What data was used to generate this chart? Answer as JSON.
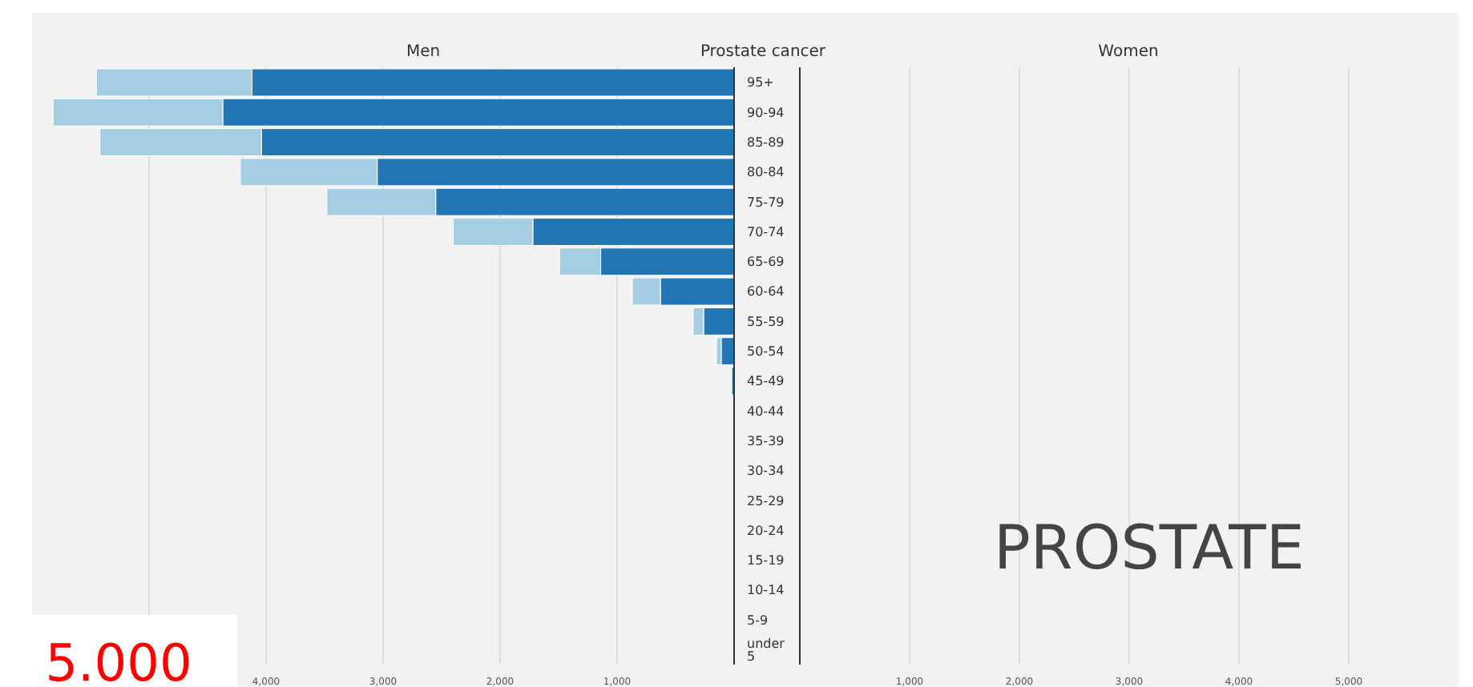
{
  "chart_data": [
    {
      "type": "bar",
      "orientation": "horizontal",
      "stacked": true,
      "title": "Men",
      "categories": [
        "95+",
        "90-94",
        "85-89",
        "80-84",
        "75-79",
        "70-74",
        "65-69",
        "60-64",
        "55-59",
        "50-54",
        "45-49",
        "40-44",
        "35-39",
        "30-34",
        "25-29",
        "20-24",
        "15-19",
        "10-14",
        "5-9",
        "under 5"
      ],
      "series": [
        {
          "color": "#2176b3",
          "values": [
            4120,
            4370,
            4040,
            3050,
            2550,
            1720,
            1140,
            630,
            260,
            110,
            20,
            0,
            0,
            0,
            0,
            0,
            0,
            0,
            0,
            0
          ]
        },
        {
          "color": "#a6cee3",
          "values": [
            1330,
            1450,
            1380,
            1170,
            930,
            680,
            350,
            240,
            90,
            40,
            0,
            0,
            0,
            0,
            0,
            0,
            0,
            0,
            0,
            0
          ]
        }
      ],
      "xlim": [
        6000,
        0
      ],
      "xticks": [
        {
          "value": 5000,
          "label": null
        },
        {
          "value": 4000,
          "label": "4,000"
        },
        {
          "value": 3000,
          "label": "3,000"
        },
        {
          "value": 2000,
          "label": "2,000"
        },
        {
          "value": 1000,
          "label": "1,000"
        }
      ],
      "grid": "x",
      "legend": false,
      "annotations": [
        "Prostate cancer",
        "5.000"
      ]
    },
    {
      "type": "bar",
      "orientation": "horizontal",
      "stacked": true,
      "title": "Women",
      "categories": [
        null,
        null,
        null,
        null,
        null,
        null,
        null,
        null,
        null,
        null,
        null,
        null,
        null,
        null,
        null,
        null,
        null,
        null,
        null,
        null
      ],
      "series": [
        {
          "color": "#2176b3",
          "values": [
            0,
            0,
            0,
            0,
            0,
            0,
            0,
            0,
            0,
            0,
            0,
            0,
            0,
            0,
            0,
            0,
            0,
            0,
            0,
            0
          ]
        },
        {
          "color": "#a6cee3",
          "values": [
            0,
            0,
            0,
            0,
            0,
            0,
            0,
            0,
            0,
            0,
            0,
            0,
            0,
            0,
            0,
            0,
            0,
            0,
            0,
            0
          ]
        }
      ],
      "xlim": [
        0,
        6000
      ],
      "xticks": [
        {
          "value": 1000,
          "label": "1,000"
        },
        {
          "value": 2000,
          "label": "2,000"
        },
        {
          "value": 3000,
          "label": "3,000"
        },
        {
          "value": 4000,
          "label": "4,000"
        },
        {
          "value": 5000,
          "label": "5,000"
        }
      ],
      "grid": "x",
      "legend": false,
      "tick_labels": "x",
      "annotations": [
        "PROSTATE"
      ]
    }
  ]
}
